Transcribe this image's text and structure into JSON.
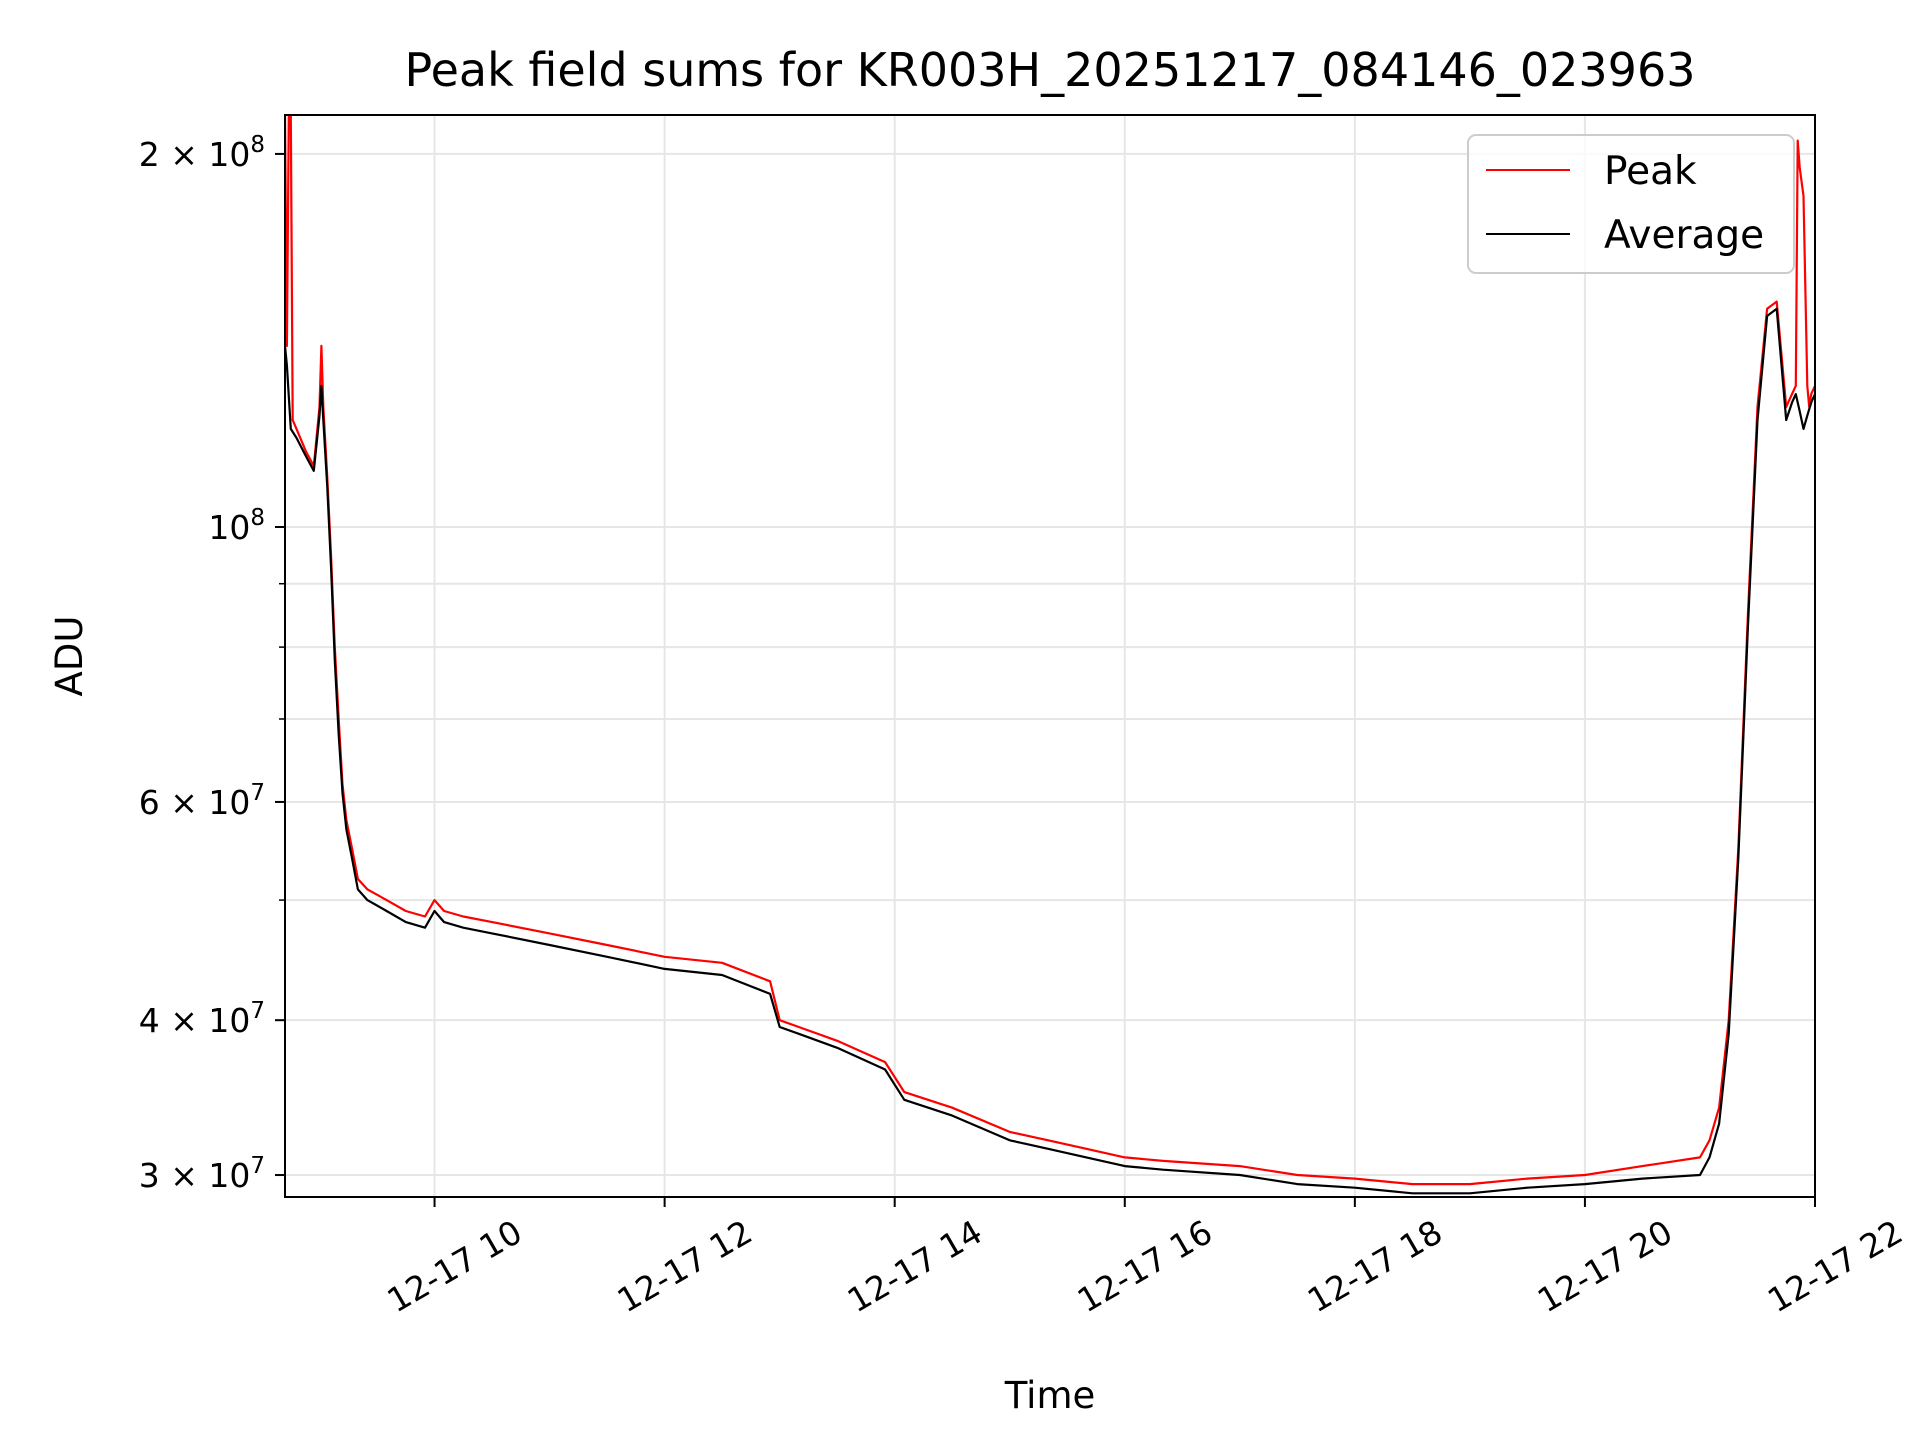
{
  "chart_data": {
    "type": "line",
    "title": "Peak field sums for KR003H_20251217_084146_023963",
    "xlabel": "Time",
    "ylabel": "ADU",
    "yscale": "log",
    "grid": true,
    "legend": {
      "placement": "top-right",
      "entries": [
        "Peak",
        "Average"
      ]
    },
    "xlim": [
      "12-17 08:42",
      "12-17 22:00"
    ],
    "ylim": [
      28800000,
      215000000
    ],
    "x_ticks": [
      {
        "time": "12-17 10:00",
        "label": "12-17 10"
      },
      {
        "time": "12-17 12:00",
        "label": "12-17 12"
      },
      {
        "time": "12-17 14:00",
        "label": "12-17 14"
      },
      {
        "time": "12-17 16:00",
        "label": "12-17 16"
      },
      {
        "time": "12-17 18:00",
        "label": "12-17 18"
      },
      {
        "time": "12-17 20:00",
        "label": "12-17 20"
      },
      {
        "time": "12-17 22:00",
        "label": "12-17 22"
      }
    ],
    "y_ticks": [
      {
        "value": 30000000,
        "base": "3",
        "exp": "7"
      },
      {
        "value": 40000000,
        "base": "4",
        "exp": "7"
      },
      {
        "value": 60000000,
        "base": "6",
        "exp": "7"
      },
      {
        "value": 100000000,
        "base": "",
        "exp": "8"
      },
      {
        "value": 200000000,
        "base": "2",
        "exp": "8"
      }
    ],
    "y_minor_ticks": [
      50000000,
      70000000,
      80000000,
      90000000
    ],
    "series": [
      {
        "name": "Peak",
        "color": "#ff0000",
        "x": [
          "12-17 08:42",
          "12-17 08:43",
          "12-17 08:44",
          "12-17 08:45",
          "12-17 08:46",
          "12-17 08:48",
          "12-17 08:53",
          "12-17 08:57",
          "12-17 09:00",
          "12-17 09:01",
          "12-17 09:02",
          "12-17 09:04",
          "12-17 09:06",
          "12-17 09:08",
          "12-17 09:10",
          "12-17 09:12",
          "12-17 09:14",
          "12-17 09:17",
          "12-17 09:20",
          "12-17 09:25",
          "12-17 09:30",
          "12-17 09:35",
          "12-17 09:45",
          "12-17 09:55",
          "12-17 10:00",
          "12-17 10:05",
          "12-17 10:15",
          "12-17 10:30",
          "12-17 11:00",
          "12-17 11:30",
          "12-17 12:00",
          "12-17 12:30",
          "12-17 12:55",
          "12-17 13:00",
          "12-17 13:10",
          "12-17 13:30",
          "12-17 13:55",
          "12-17 14:05",
          "12-17 14:30",
          "12-17 15:00",
          "12-17 15:20",
          "12-17 15:40",
          "12-17 16:00",
          "12-17 16:20",
          "12-17 17:00",
          "12-17 17:30",
          "12-17 18:00",
          "12-17 18:30",
          "12-17 19:00",
          "12-17 19:30",
          "12-17 20:00",
          "12-17 20:30",
          "12-17 21:00",
          "12-17 21:05",
          "12-17 21:10",
          "12-17 21:15",
          "12-17 21:20",
          "12-17 21:25",
          "12-17 21:30",
          "12-17 21:35",
          "12-17 21:40",
          "12-17 21:45",
          "12-17 21:48",
          "12-17 21:50",
          "12-17 21:51",
          "12-17 21:52",
          "12-17 21:54",
          "12-17 21:56",
          "12-17 21:57",
          "12-17 21:58",
          "12-17 22:00"
        ],
        "values": [
          215000000,
          140000000,
          215000000,
          215000000,
          122000000,
          120000000,
          115000000,
          112000000,
          125000000,
          140000000,
          125000000,
          110000000,
          95000000,
          80000000,
          70000000,
          62000000,
          58000000,
          55000000,
          52000000,
          51000000,
          50500000,
          50000000,
          49000000,
          48500000,
          50000000,
          49000000,
          48500000,
          48000000,
          47000000,
          46000000,
          45000000,
          44500000,
          43000000,
          40000000,
          39500000,
          38500000,
          37000000,
          35000000,
          34000000,
          32500000,
          32000000,
          31500000,
          31000000,
          30800000,
          30500000,
          30000000,
          29800000,
          29500000,
          29500000,
          29800000,
          30000000,
          30500000,
          31000000,
          32000000,
          34000000,
          40000000,
          55000000,
          85000000,
          125000000,
          150000000,
          152000000,
          125000000,
          128000000,
          130000000,
          205000000,
          195000000,
          185000000,
          130000000,
          125000000,
          128000000,
          130000000
        ]
      },
      {
        "name": "Average",
        "color": "#000000",
        "x": [
          "12-17 08:42",
          "12-17 08:43",
          "12-17 08:45",
          "12-17 08:48",
          "12-17 08:53",
          "12-17 08:57",
          "12-17 09:00",
          "12-17 09:01",
          "12-17 09:02",
          "12-17 09:04",
          "12-17 09:06",
          "12-17 09:08",
          "12-17 09:10",
          "12-17 09:12",
          "12-17 09:14",
          "12-17 09:17",
          "12-17 09:20",
          "12-17 09:25",
          "12-17 09:30",
          "12-17 09:35",
          "12-17 09:45",
          "12-17 09:55",
          "12-17 10:00",
          "12-17 10:05",
          "12-17 10:15",
          "12-17 10:30",
          "12-17 11:00",
          "12-17 11:30",
          "12-17 12:00",
          "12-17 12:30",
          "12-17 12:55",
          "12-17 13:00",
          "12-17 13:10",
          "12-17 13:30",
          "12-17 13:55",
          "12-17 14:05",
          "12-17 14:30",
          "12-17 15:00",
          "12-17 15:20",
          "12-17 15:40",
          "12-17 16:00",
          "12-17 16:20",
          "12-17 17:00",
          "12-17 17:30",
          "12-17 18:00",
          "12-17 18:30",
          "12-17 19:00",
          "12-17 19:30",
          "12-17 20:00",
          "12-17 20:30",
          "12-17 21:00",
          "12-17 21:05",
          "12-17 21:10",
          "12-17 21:15",
          "12-17 21:20",
          "12-17 21:25",
          "12-17 21:30",
          "12-17 21:35",
          "12-17 21:40",
          "12-17 21:45",
          "12-17 21:48",
          "12-17 21:50",
          "12-17 21:52",
          "12-17 21:54",
          "12-17 21:56",
          "12-17 21:58",
          "12-17 22:00"
        ],
        "values": [
          140000000,
          135000000,
          120000000,
          118000000,
          114000000,
          111000000,
          123000000,
          130000000,
          122000000,
          108000000,
          93000000,
          78000000,
          68000000,
          61000000,
          57000000,
          54000000,
          51000000,
          50000000,
          49500000,
          49000000,
          48000000,
          47500000,
          49000000,
          48000000,
          47500000,
          47000000,
          46000000,
          45000000,
          44000000,
          43500000,
          42000000,
          39500000,
          39000000,
          38000000,
          36500000,
          34500000,
          33500000,
          32000000,
          31500000,
          31000000,
          30500000,
          30300000,
          30000000,
          29500000,
          29300000,
          29000000,
          29000000,
          29300000,
          29500000,
          29800000,
          30000000,
          31000000,
          33000000,
          39000000,
          54000000,
          83000000,
          122000000,
          148000000,
          150000000,
          122000000,
          126000000,
          128000000,
          124000000,
          120000000,
          123000000,
          126000000,
          128000000
        ]
      }
    ]
  }
}
